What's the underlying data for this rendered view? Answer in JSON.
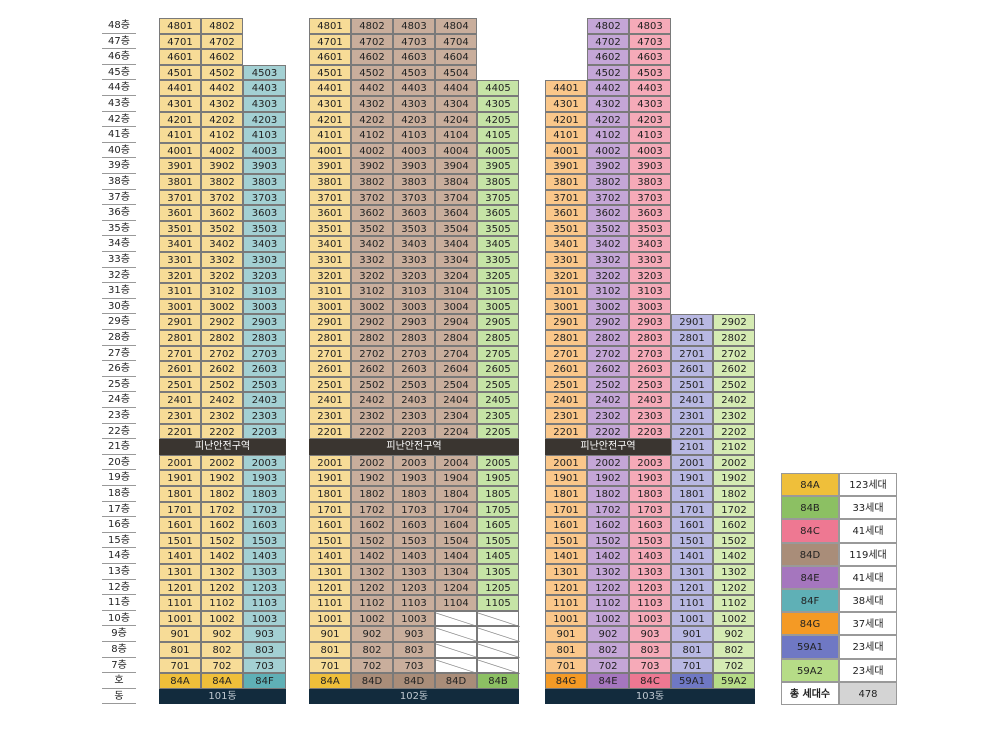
{
  "labels": {
    "refuge": "피난안전구역",
    "row_ho": "호",
    "row_dong": "동",
    "total_label": "총 세대수",
    "total_value": "478"
  },
  "types": {
    "84A": {
      "color": "#f7dc97",
      "type_color": "#efbf3a",
      "count": "123세대"
    },
    "84B": {
      "color": "#c6e4a6",
      "type_color": "#8cc063",
      "count": "33세대"
    },
    "84C": {
      "color": "#f6aab8",
      "type_color": "#ee7892",
      "count": "41세대"
    },
    "84D": {
      "color": "#c9ae9c",
      "type_color": "#a98d79",
      "count": "119세대"
    },
    "84E": {
      "color": "#c4a6d7",
      "type_color": "#a576be",
      "count": "41세대"
    },
    "84F": {
      "color": "#a3d0d3",
      "type_color": "#5fb0b6",
      "count": "38세대"
    },
    "84G": {
      "color": "#fac78a",
      "type_color": "#f49a25",
      "count": "37세대"
    },
    "59A1": {
      "color": "#b8b8e3",
      "type_color": "#6f78c4",
      "count": "23세대"
    },
    "59A2": {
      "color": "#d5ebb3",
      "type_color": "#b6dc87",
      "count": "23세대"
    }
  },
  "legend_order": [
    "84A",
    "84B",
    "84C",
    "84D",
    "84E",
    "84F",
    "84G",
    "59A1",
    "59A2"
  ],
  "buildings": [
    {
      "name": "101동",
      "columns": [
        {
          "line": "01",
          "type": "84A",
          "top": 48
        },
        {
          "line": "02",
          "type": "84A",
          "top": 48
        },
        {
          "line": "03",
          "type": "84F",
          "top": 45
        }
      ]
    },
    {
      "name": "102동",
      "columns": [
        {
          "line": "01",
          "type": "84A",
          "top": 48
        },
        {
          "line": "02",
          "type": "84D",
          "top": 48
        },
        {
          "line": "03",
          "type": "84D",
          "top": 48
        },
        {
          "line": "04",
          "type": "84D",
          "top": 48,
          "start": 11
        },
        {
          "line": "05",
          "type": "84B",
          "top": 44,
          "start": 11
        }
      ]
    },
    {
      "name": "103동",
      "columns": [
        {
          "line": "01",
          "type": "84G",
          "top": 44
        },
        {
          "line": "02",
          "type": "84E",
          "top": 48
        },
        {
          "line": "03",
          "type": "84C",
          "top": 48
        },
        {
          "line": "01",
          "type": "59A1",
          "top": 29,
          "noref": true
        },
        {
          "line": "02",
          "type": "59A2",
          "top": 29,
          "noref": true
        }
      ]
    }
  ]
}
